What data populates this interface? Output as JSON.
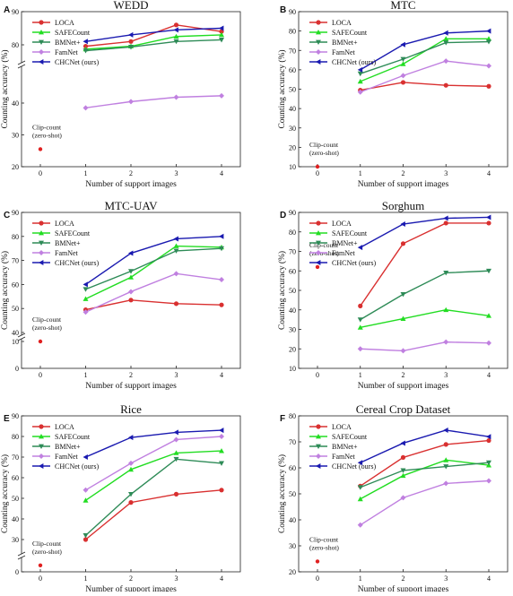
{
  "chart_data": [
    {
      "type": "line",
      "panel": "A",
      "title": "WEDD",
      "xlabel": "Number of support images",
      "ylabel": "Counting accuracy (%)",
      "x": [
        0,
        1,
        2,
        3,
        4
      ],
      "xticks": [
        "0",
        "1",
        "2",
        "3",
        "4"
      ],
      "yticks": [
        "20",
        "30",
        "40",
        "80",
        "90"
      ],
      "y_break": true,
      "legend": "top-left",
      "series": [
        {
          "name": "LOCA",
          "color": "#d93030",
          "marker": "circle",
          "x": [
            1,
            2,
            3,
            4
          ],
          "values": [
            79,
            81,
            86,
            84
          ]
        },
        {
          "name": "SAFECount",
          "color": "#22dd22",
          "marker": "triangle-up",
          "x": [
            1,
            2,
            3,
            4
          ],
          "values": [
            77,
            79,
            82.5,
            83
          ]
        },
        {
          "name": "BMNet+",
          "color": "#2e8b57",
          "marker": "triangle-down",
          "x": [
            1,
            2,
            3,
            4
          ],
          "values": [
            76,
            78.5,
            81,
            81.5
          ]
        },
        {
          "name": "FamNet",
          "color": "#c080e0",
          "marker": "diamond",
          "x": [
            1,
            2,
            3,
            4
          ],
          "values": [
            38.5,
            41,
            44,
            45
          ]
        },
        {
          "name": "CHCNet (ours)",
          "color": "#1a1ab0",
          "marker": "left-triangle",
          "x": [
            1,
            2,
            3,
            4
          ],
          "values": [
            81,
            83,
            84.5,
            85
          ]
        }
      ],
      "zero_shot": {
        "label": "Clip-count\n(zero-shot)",
        "x": 0,
        "value": 25.5
      }
    },
    {
      "type": "line",
      "panel": "B",
      "title": "MTC",
      "xlabel": "Number of support images",
      "ylabel": "Counting accuracy (%)",
      "x": [
        0,
        1,
        2,
        3,
        4
      ],
      "xticks": [
        "0",
        "1",
        "2",
        "3",
        "4"
      ],
      "yticks": [
        "10",
        "20",
        "30",
        "40",
        "50",
        "60",
        "70",
        "80",
        "90"
      ],
      "ylim": [
        10,
        90
      ],
      "legend": "top-left",
      "series": [
        {
          "name": "LOCA",
          "color": "#d93030",
          "marker": "circle",
          "x": [
            1,
            2,
            3,
            4
          ],
          "values": [
            49.5,
            53.5,
            52,
            51.5
          ]
        },
        {
          "name": "SAFECount",
          "color": "#22dd22",
          "marker": "triangle-up",
          "x": [
            1,
            2,
            3,
            4
          ],
          "values": [
            54,
            63,
            76,
            76
          ]
        },
        {
          "name": "BMNet+",
          "color": "#2e8b57",
          "marker": "triangle-down",
          "x": [
            1,
            2,
            3,
            4
          ],
          "values": [
            58,
            65.5,
            74,
            74.5
          ]
        },
        {
          "name": "FamNet",
          "color": "#c080e0",
          "marker": "diamond",
          "x": [
            1,
            2,
            3,
            4
          ],
          "values": [
            48.5,
            57,
            64.5,
            62
          ]
        },
        {
          "name": "CHCNet (ours)",
          "color": "#1a1ab0",
          "marker": "left-triangle",
          "x": [
            1,
            2,
            3,
            4
          ],
          "values": [
            60,
            73,
            79,
            80
          ]
        }
      ],
      "zero_shot": {
        "label": "Clip-count\n(zero-shot)",
        "x": 0,
        "value": 10
      }
    },
    {
      "type": "line",
      "panel": "C",
      "title": "MTC-UAV",
      "xlabel": "Number of support images",
      "ylabel": "Counting accuracy (%)",
      "x": [
        0,
        1,
        2,
        3,
        4
      ],
      "xticks": [
        "0",
        "1",
        "2",
        "3",
        "4"
      ],
      "yticks": [
        "0",
        "10",
        "40",
        "50",
        "60",
        "70",
        "80",
        "90"
      ],
      "y_break": true,
      "legend": "top-left",
      "series": [
        {
          "name": "LOCA",
          "color": "#d93030",
          "marker": "circle",
          "x": [
            1,
            2,
            3,
            4
          ],
          "values": [
            49.5,
            53.5,
            52,
            51.5
          ]
        },
        {
          "name": "SAFECount",
          "color": "#22dd22",
          "marker": "triangle-up",
          "x": [
            1,
            2,
            3,
            4
          ],
          "values": [
            54,
            63,
            76,
            75.5
          ]
        },
        {
          "name": "BMNet+",
          "color": "#2e8b57",
          "marker": "triangle-down",
          "x": [
            1,
            2,
            3,
            4
          ],
          "values": [
            58,
            65.5,
            74,
            75
          ]
        },
        {
          "name": "FamNet",
          "color": "#c080e0",
          "marker": "diamond",
          "x": [
            1,
            2,
            3,
            4
          ],
          "values": [
            48.5,
            57,
            64.5,
            62
          ]
        },
        {
          "name": "CHCNet (ours)",
          "color": "#1a1ab0",
          "marker": "left-triangle",
          "x": [
            1,
            2,
            3,
            4
          ],
          "values": [
            60,
            73,
            79,
            80
          ]
        }
      ],
      "zero_shot": {
        "label": "Clip-count\n(zero-shot)",
        "x": 0,
        "value": 10
      }
    },
    {
      "type": "line",
      "panel": "D",
      "title": "Sorghum",
      "xlabel": "Number of support images",
      "ylabel": "Counting accuracy (%)",
      "x": [
        0,
        1,
        2,
        3,
        4
      ],
      "xticks": [
        "0",
        "1",
        "2",
        "3",
        "4"
      ],
      "yticks": [
        "10",
        "20",
        "30",
        "40",
        "50",
        "60",
        "70",
        "80",
        "90"
      ],
      "ylim": [
        10,
        90
      ],
      "legend": "top-left",
      "series": [
        {
          "name": "LOCA",
          "color": "#d93030",
          "marker": "circle",
          "x": [
            1,
            2,
            3,
            4
          ],
          "values": [
            42,
            74,
            84.5,
            84.5
          ]
        },
        {
          "name": "SAFECount",
          "color": "#22dd22",
          "marker": "triangle-up",
          "x": [
            1,
            2,
            3,
            4
          ],
          "values": [
            31,
            35.5,
            40,
            37
          ]
        },
        {
          "name": "BMNet+",
          "color": "#2e8b57",
          "marker": "triangle-down",
          "x": [
            1,
            2,
            3,
            4
          ],
          "values": [
            35,
            48,
            59,
            60
          ]
        },
        {
          "name": "FamNet",
          "color": "#c080e0",
          "marker": "diamond",
          "x": [
            1,
            2,
            3,
            4
          ],
          "values": [
            20,
            19,
            23.5,
            23
          ]
        },
        {
          "name": "CHCNet (ours)",
          "color": "#1a1ab0",
          "marker": "left-triangle",
          "x": [
            1,
            2,
            3,
            4
          ],
          "values": [
            72,
            84,
            87,
            87.5
          ]
        }
      ],
      "zero_shot": {
        "label": "Clip-count\n(zero-shot)",
        "x": 0,
        "value": 62
      }
    },
    {
      "type": "line",
      "panel": "E",
      "title": "Rice",
      "xlabel": "Number of support images",
      "ylabel": "Counting accuracy (%)",
      "x": [
        0,
        1,
        2,
        3,
        4
      ],
      "xticks": [
        "0",
        "1",
        "2",
        "3",
        "4"
      ],
      "yticks": [
        "0",
        "30",
        "40",
        "50",
        "60",
        "70",
        "80",
        "90"
      ],
      "y_break": true,
      "legend": "top-left",
      "series": [
        {
          "name": "LOCA",
          "color": "#d93030",
          "marker": "circle",
          "x": [
            1,
            2,
            3,
            4
          ],
          "values": [
            30,
            48,
            52,
            54
          ]
        },
        {
          "name": "SAFECount",
          "color": "#22dd22",
          "marker": "triangle-up",
          "x": [
            1,
            2,
            3,
            4
          ],
          "values": [
            49,
            64,
            72,
            73
          ]
        },
        {
          "name": "BMNet+",
          "color": "#2e8b57",
          "marker": "triangle-down",
          "x": [
            1,
            2,
            3,
            4
          ],
          "values": [
            32,
            52,
            69,
            67
          ]
        },
        {
          "name": "FamNet",
          "color": "#c080e0",
          "marker": "diamond",
          "x": [
            1,
            2,
            3,
            4
          ],
          "values": [
            54,
            67,
            78.5,
            80
          ]
        },
        {
          "name": "CHCNet (ours)",
          "color": "#1a1ab0",
          "marker": "left-triangle",
          "x": [
            1,
            2,
            3,
            4
          ],
          "values": [
            70,
            79.5,
            82,
            83
          ]
        }
      ],
      "zero_shot": {
        "label": "Clip-count\n(zero-shot)",
        "x": 0,
        "value": 6
      }
    },
    {
      "type": "line",
      "panel": "F",
      "title": "Cereal Crop Dataset",
      "xlabel": "Number of support images",
      "ylabel": "Counting accuracy (%)",
      "x": [
        0,
        1,
        2,
        3,
        4
      ],
      "xticks": [
        "0",
        "1",
        "2",
        "3",
        "4"
      ],
      "yticks": [
        "20",
        "30",
        "40",
        "50",
        "60",
        "70",
        "80"
      ],
      "ylim": [
        20,
        80
      ],
      "legend": "top-left",
      "series": [
        {
          "name": "LOCA",
          "color": "#d93030",
          "marker": "circle",
          "x": [
            1,
            2,
            3,
            4
          ],
          "values": [
            53,
            64,
            69,
            70.5
          ]
        },
        {
          "name": "SAFECount",
          "color": "#22dd22",
          "marker": "triangle-up",
          "x": [
            1,
            2,
            3,
            4
          ],
          "values": [
            48,
            57,
            63,
            61
          ]
        },
        {
          "name": "BMNet+",
          "color": "#2e8b57",
          "marker": "triangle-down",
          "x": [
            1,
            2,
            3,
            4
          ],
          "values": [
            52.5,
            59,
            60.5,
            62
          ]
        },
        {
          "name": "FamNet",
          "color": "#c080e0",
          "marker": "diamond",
          "x": [
            1,
            2,
            3,
            4
          ],
          "values": [
            38,
            48.5,
            54,
            55
          ]
        },
        {
          "name": "CHCNet (ours)",
          "color": "#1a1ab0",
          "marker": "left-triangle",
          "x": [
            1,
            2,
            3,
            4
          ],
          "values": [
            62,
            69.5,
            74.5,
            72
          ]
        }
      ],
      "zero_shot": {
        "label": "Clip-count\n(zero-shot)",
        "x": 0,
        "value": 24
      }
    }
  ]
}
